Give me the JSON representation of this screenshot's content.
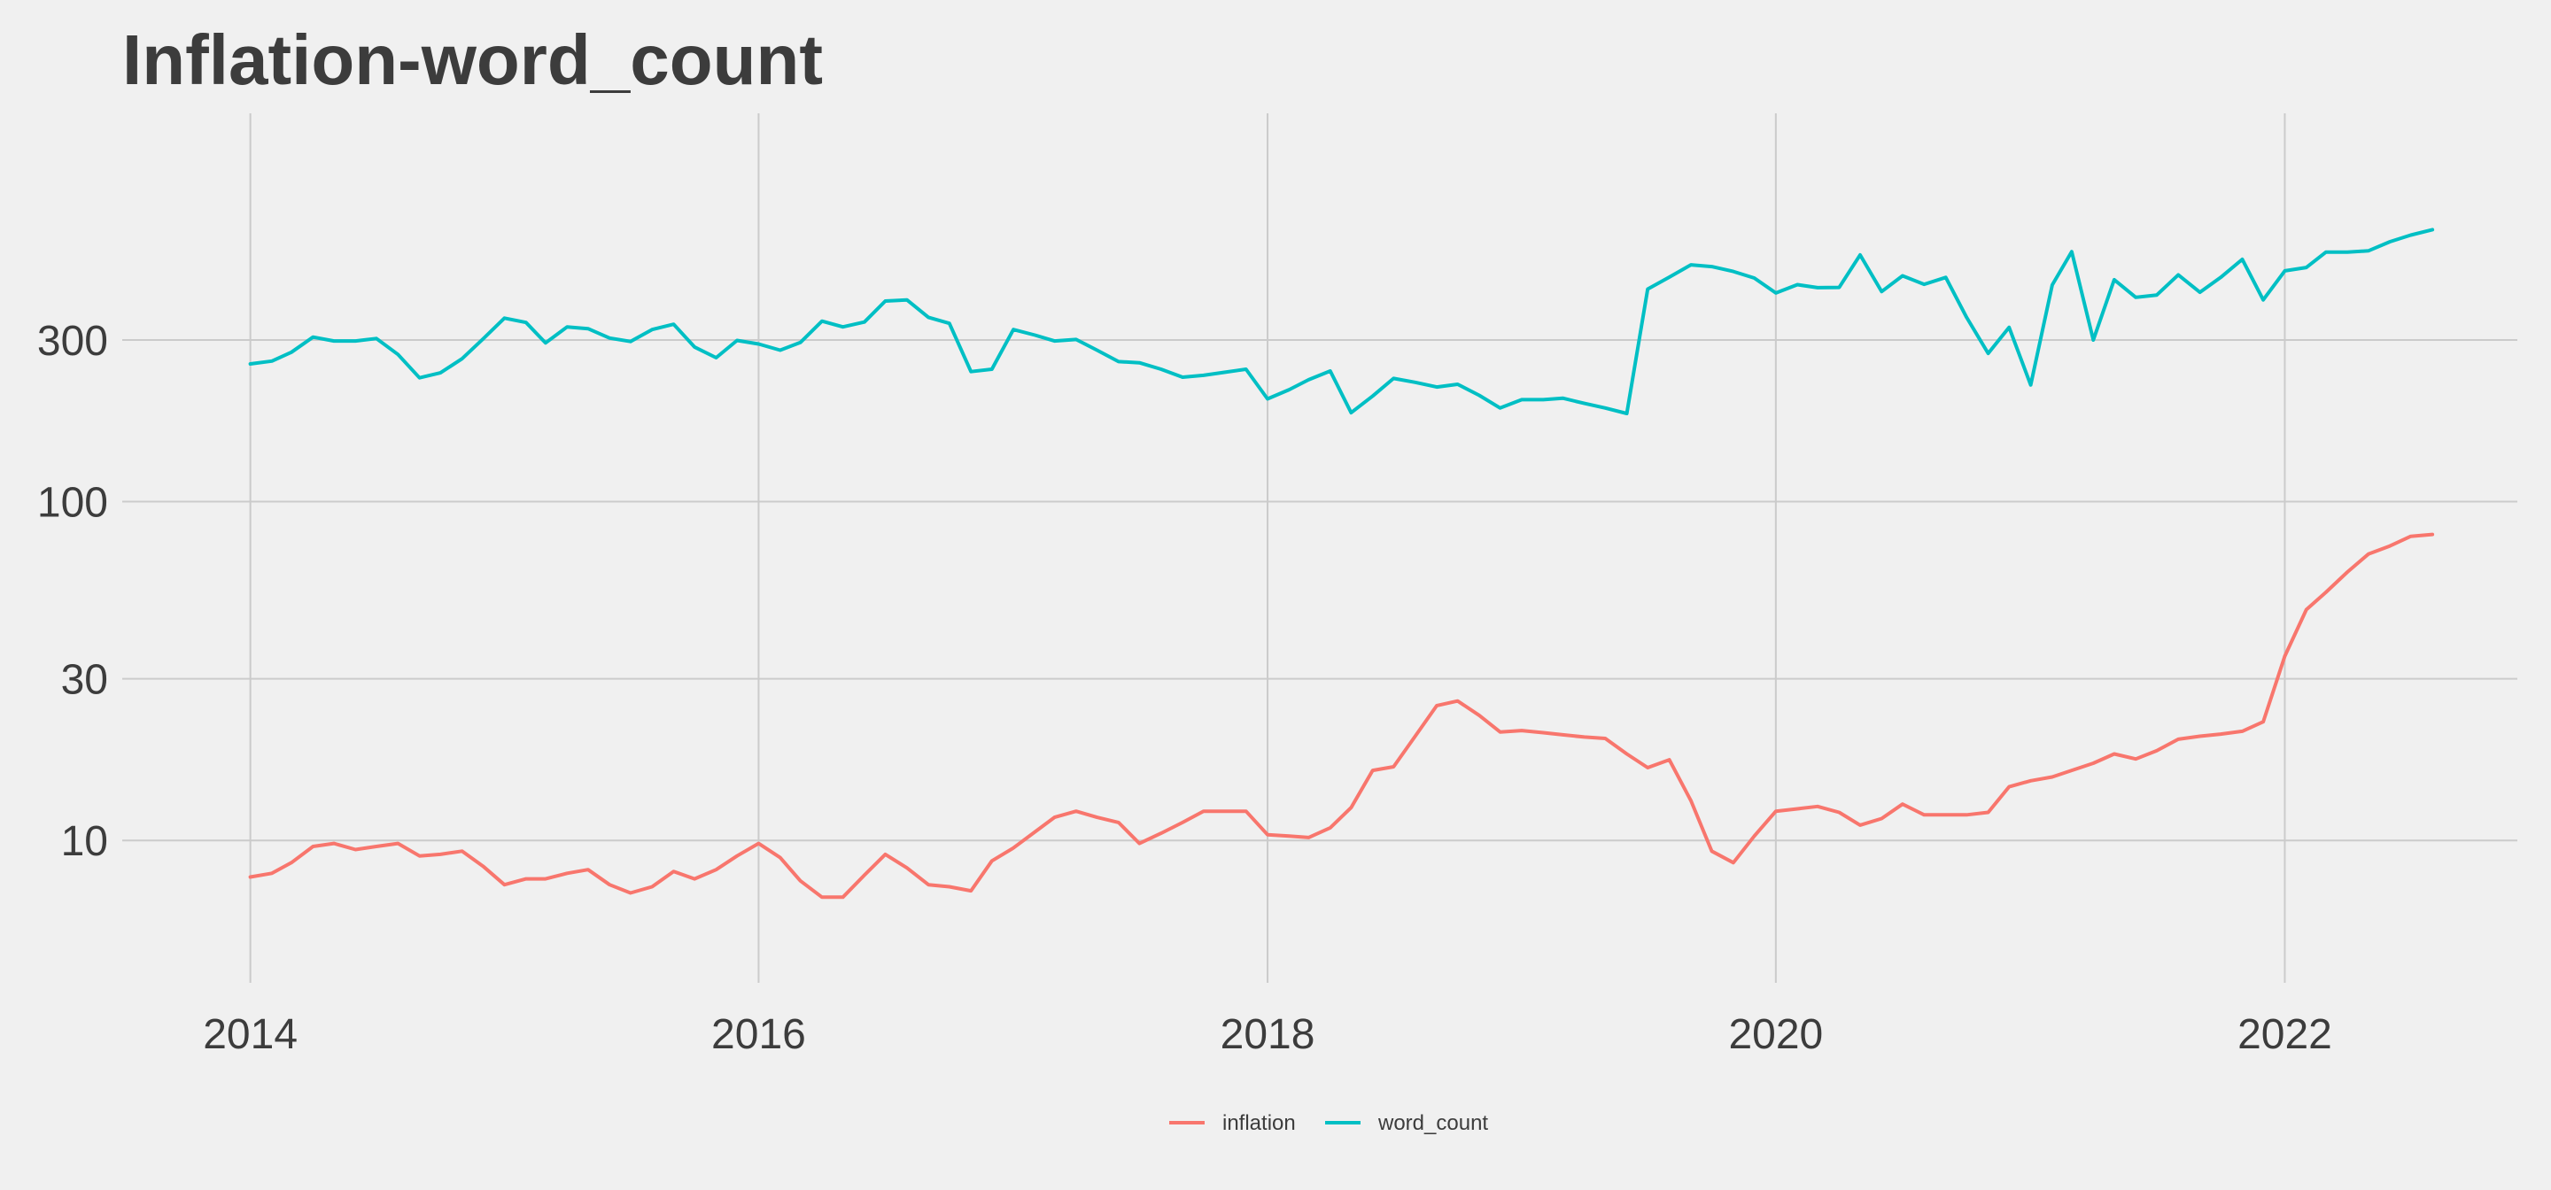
{
  "chart_data": {
    "type": "line",
    "title": "Inflation-word_count",
    "xlabel": "",
    "ylabel": "",
    "y_scale": "log",
    "ylim": [
      3.8,
      1400
    ],
    "xlim": [
      "2013-07-01",
      "2022-12-01"
    ],
    "grid": true,
    "legend_position": "bottom",
    "x_ticks": [
      {
        "label": "2014",
        "date": "2014-01-01"
      },
      {
        "label": "2016",
        "date": "2016-01-01"
      },
      {
        "label": "2018",
        "date": "2018-01-01"
      },
      {
        "label": "2020",
        "date": "2020-01-01"
      },
      {
        "label": "2022",
        "date": "2022-01-01"
      }
    ],
    "y_ticks": [
      {
        "label": "10",
        "value": 10
      },
      {
        "label": "30",
        "value": 30
      },
      {
        "label": "100",
        "value": 100
      },
      {
        "label": "300",
        "value": 300
      }
    ],
    "series": [
      {
        "name": "inflation",
        "color": "#f8766d",
        "points": [
          [
            "2014-01-01",
            7.8
          ],
          [
            "2014-02-01",
            8.0
          ],
          [
            "2014-03-01",
            8.6
          ],
          [
            "2014-04-01",
            9.6
          ],
          [
            "2014-05-01",
            9.8
          ],
          [
            "2014-06-01",
            9.4
          ],
          [
            "2014-07-01",
            9.6
          ],
          [
            "2014-08-01",
            9.8
          ],
          [
            "2014-09-01",
            9.0
          ],
          [
            "2014-10-01",
            9.1
          ],
          [
            "2014-11-01",
            9.3
          ],
          [
            "2014-12-01",
            8.4
          ],
          [
            "2015-01-01",
            7.4
          ],
          [
            "2015-02-01",
            7.7
          ],
          [
            "2015-03-01",
            7.7
          ],
          [
            "2015-04-01",
            8.0
          ],
          [
            "2015-05-01",
            8.2
          ],
          [
            "2015-06-01",
            7.4
          ],
          [
            "2015-07-01",
            7.0
          ],
          [
            "2015-08-01",
            7.3
          ],
          [
            "2015-09-01",
            8.1
          ],
          [
            "2015-10-01",
            7.7
          ],
          [
            "2015-11-01",
            8.2
          ],
          [
            "2015-12-01",
            9.0
          ],
          [
            "2016-01-01",
            9.8
          ],
          [
            "2016-02-01",
            8.9
          ],
          [
            "2016-03-01",
            7.6
          ],
          [
            "2016-04-01",
            6.8
          ],
          [
            "2016-05-01",
            6.8
          ],
          [
            "2016-06-01",
            7.9
          ],
          [
            "2016-07-01",
            9.1
          ],
          [
            "2016-08-01",
            8.3
          ],
          [
            "2016-09-01",
            7.4
          ],
          [
            "2016-10-01",
            7.3
          ],
          [
            "2016-11-01",
            7.1
          ],
          [
            "2016-12-01",
            8.7
          ],
          [
            "2017-01-01",
            9.5
          ],
          [
            "2017-02-01",
            10.6
          ],
          [
            "2017-03-01",
            11.7
          ],
          [
            "2017-04-01",
            12.2
          ],
          [
            "2017-05-01",
            11.7
          ],
          [
            "2017-06-01",
            11.3
          ],
          [
            "2017-07-01",
            9.8
          ],
          [
            "2017-08-01",
            10.5
          ],
          [
            "2017-09-01",
            11.3
          ],
          [
            "2017-10-01",
            12.2
          ],
          [
            "2017-11-01",
            12.2
          ],
          [
            "2017-12-01",
            12.2
          ],
          [
            "2018-01-01",
            10.4
          ],
          [
            "2018-02-01",
            10.3
          ],
          [
            "2018-03-01",
            10.2
          ],
          [
            "2018-04-01",
            10.9
          ],
          [
            "2018-05-01",
            12.5
          ],
          [
            "2018-06-01",
            16.1
          ],
          [
            "2018-07-01",
            16.5
          ],
          [
            "2018-08-01",
            20.3
          ],
          [
            "2018-09-01",
            25.0
          ],
          [
            "2018-10-01",
            25.8
          ],
          [
            "2018-11-01",
            23.4
          ],
          [
            "2018-12-01",
            20.9
          ],
          [
            "2019-01-01",
            21.1
          ],
          [
            "2019-02-01",
            20.8
          ],
          [
            "2019-03-01",
            20.5
          ],
          [
            "2019-04-01",
            20.2
          ],
          [
            "2019-05-01",
            20.0
          ],
          [
            "2019-06-01",
            18.0
          ],
          [
            "2019-07-01",
            16.4
          ],
          [
            "2019-08-01",
            17.3
          ],
          [
            "2019-09-01",
            13.1
          ],
          [
            "2019-10-01",
            9.3
          ],
          [
            "2019-11-01",
            8.6
          ],
          [
            "2019-12-01",
            10.3
          ],
          [
            "2020-01-01",
            12.2
          ],
          [
            "2020-02-01",
            12.4
          ],
          [
            "2020-03-01",
            12.6
          ],
          [
            "2020-04-01",
            12.1
          ],
          [
            "2020-05-01",
            11.1
          ],
          [
            "2020-06-01",
            11.6
          ],
          [
            "2020-07-01",
            12.8
          ],
          [
            "2020-08-01",
            11.9
          ],
          [
            "2020-09-01",
            11.9
          ],
          [
            "2020-10-01",
            11.9
          ],
          [
            "2020-11-01",
            12.1
          ],
          [
            "2020-12-01",
            14.4
          ],
          [
            "2021-01-01",
            15.0
          ],
          [
            "2021-02-01",
            15.4
          ],
          [
            "2021-03-01",
            16.1
          ],
          [
            "2021-04-01",
            16.9
          ],
          [
            "2021-05-01",
            18.0
          ],
          [
            "2021-06-01",
            17.4
          ],
          [
            "2021-07-01",
            18.4
          ],
          [
            "2021-08-01",
            19.9
          ],
          [
            "2021-09-01",
            20.3
          ],
          [
            "2021-10-01",
            20.6
          ],
          [
            "2021-11-01",
            21.0
          ],
          [
            "2021-12-01",
            22.4
          ],
          [
            "2022-01-01",
            35.0
          ],
          [
            "2022-02-01",
            48.0
          ],
          [
            "2022-03-01",
            54.0
          ],
          [
            "2022-04-01",
            62.0
          ],
          [
            "2022-05-01",
            70.0
          ],
          [
            "2022-06-01",
            74.0
          ],
          [
            "2022-07-01",
            79.0
          ],
          [
            "2022-08-01",
            80.0
          ]
        ]
      },
      {
        "name": "word_count",
        "color": "#00bfc4",
        "points": [
          [
            "2014-01-01",
            255
          ],
          [
            "2014-02-01",
            260
          ],
          [
            "2014-03-01",
            276
          ],
          [
            "2014-04-01",
            306
          ],
          [
            "2014-05-01",
            298
          ],
          [
            "2014-06-01",
            298
          ],
          [
            "2014-07-01",
            303
          ],
          [
            "2014-08-01",
            272
          ],
          [
            "2014-09-01",
            232
          ],
          [
            "2014-10-01",
            240
          ],
          [
            "2014-11-01",
            264
          ],
          [
            "2014-12-01",
            302
          ],
          [
            "2015-01-01",
            348
          ],
          [
            "2015-02-01",
            338
          ],
          [
            "2015-03-01",
            294
          ],
          [
            "2015-04-01",
            328
          ],
          [
            "2015-05-01",
            324
          ],
          [
            "2015-06-01",
            304
          ],
          [
            "2015-07-01",
            297
          ],
          [
            "2015-08-01",
            322
          ],
          [
            "2015-09-01",
            334
          ],
          [
            "2015-10-01",
            286
          ],
          [
            "2015-11-01",
            266
          ],
          [
            "2015-12-01",
            299
          ],
          [
            "2016-01-01",
            292
          ],
          [
            "2016-02-01",
            280
          ],
          [
            "2016-03-01",
            295
          ],
          [
            "2016-04-01",
            341
          ],
          [
            "2016-05-01",
            328
          ],
          [
            "2016-06-01",
            339
          ],
          [
            "2016-07-01",
            391
          ],
          [
            "2016-08-01",
            394
          ],
          [
            "2016-09-01",
            350
          ],
          [
            "2016-10-01",
            336
          ],
          [
            "2016-11-01",
            242
          ],
          [
            "2016-12-01",
            246
          ],
          [
            "2017-01-01",
            322
          ],
          [
            "2017-02-01",
            310
          ],
          [
            "2017-03-01",
            298
          ],
          [
            "2017-04-01",
            301
          ],
          [
            "2017-05-01",
            280
          ],
          [
            "2017-06-01",
            259
          ],
          [
            "2017-07-01",
            257
          ],
          [
            "2017-08-01",
            246
          ],
          [
            "2017-09-01",
            233
          ],
          [
            "2017-10-01",
            236
          ],
          [
            "2017-11-01",
            241
          ],
          [
            "2017-12-01",
            246
          ],
          [
            "2018-01-01",
            201
          ],
          [
            "2018-02-01",
            214
          ],
          [
            "2018-03-01",
            229
          ],
          [
            "2018-04-01",
            243
          ],
          [
            "2018-05-01",
            183
          ],
          [
            "2018-06-01",
            205
          ],
          [
            "2018-07-01",
            231
          ],
          [
            "2018-08-01",
            225
          ],
          [
            "2018-09-01",
            218
          ],
          [
            "2018-10-01",
            222
          ],
          [
            "2018-11-01",
            206
          ],
          [
            "2018-12-01",
            189
          ],
          [
            "2019-01-01",
            200
          ],
          [
            "2019-02-01",
            200
          ],
          [
            "2019-03-01",
            202
          ],
          [
            "2019-04-01",
            195
          ],
          [
            "2019-05-01",
            189
          ],
          [
            "2019-06-01",
            182
          ],
          [
            "2019-07-01",
            424
          ],
          [
            "2019-08-01",
            460
          ],
          [
            "2019-09-01",
            500
          ],
          [
            "2019-10-01",
            494
          ],
          [
            "2019-11-01",
            478
          ],
          [
            "2019-12-01",
            457
          ],
          [
            "2020-01-01",
            413
          ],
          [
            "2020-02-01",
            437
          ],
          [
            "2020-03-01",
            428
          ],
          [
            "2020-04-01",
            429
          ],
          [
            "2020-05-01",
            535
          ],
          [
            "2020-06-01",
            417
          ],
          [
            "2020-07-01",
            464
          ],
          [
            "2020-08-01",
            438
          ],
          [
            "2020-09-01",
            459
          ],
          [
            "2020-10-01",
            350
          ],
          [
            "2020-11-01",
            274
          ],
          [
            "2020-12-01",
            327
          ],
          [
            "2021-01-01",
            221
          ],
          [
            "2021-02-01",
            436
          ],
          [
            "2021-03-01",
            547
          ],
          [
            "2021-04-01",
            300
          ],
          [
            "2021-05-01",
            452
          ],
          [
            "2021-06-01",
            401
          ],
          [
            "2021-07-01",
            407
          ],
          [
            "2021-08-01",
            467
          ],
          [
            "2021-09-01",
            415
          ],
          [
            "2021-10-01",
            459
          ],
          [
            "2021-11-01",
            519
          ],
          [
            "2021-12-01",
            394
          ],
          [
            "2022-01-01",
            480
          ],
          [
            "2022-02-01",
            491
          ],
          [
            "2022-03-01",
            545
          ],
          [
            "2022-04-01",
            545
          ],
          [
            "2022-05-01",
            550
          ],
          [
            "2022-06-01",
            585
          ],
          [
            "2022-07-01",
            612
          ],
          [
            "2022-08-01",
            635
          ]
        ]
      }
    ]
  }
}
